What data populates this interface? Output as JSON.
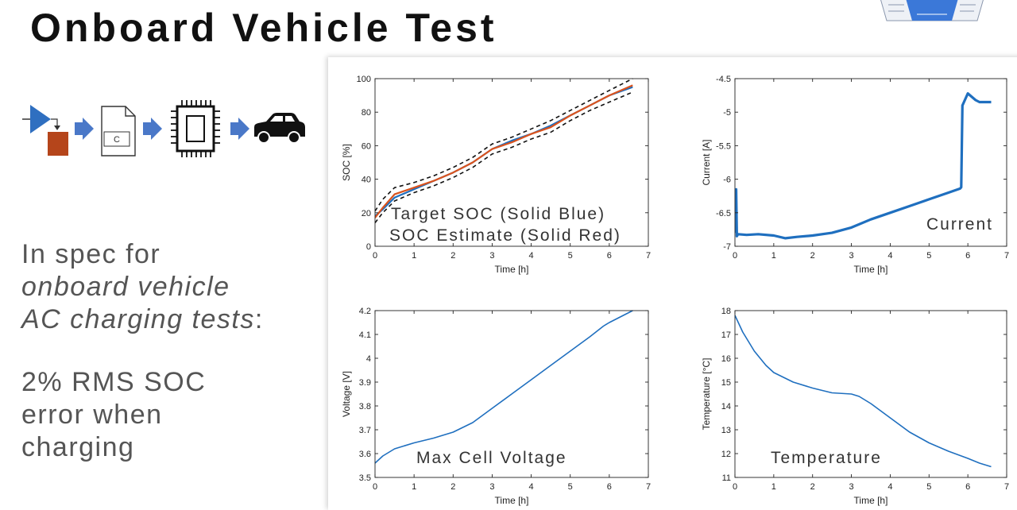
{
  "page": {
    "title": "Onboard Vehicle Test",
    "spec_line1": "In spec for",
    "spec_line2": "onboard vehicle",
    "spec_line3": "AC charging tests",
    "spec_colon": ":",
    "error_line1": "2% RMS SOC",
    "error_line2": "error when",
    "error_line3": "charging",
    "workflow_file_label": "C",
    "colors": {
      "series": "#1f6fbf",
      "estimate": "#d9531e",
      "bounds": "#111111",
      "arrow": "#4a78c8",
      "block": "#b5451b"
    },
    "icons": [
      "model-block-icon",
      "arrow-right-icon",
      "c-file-icon",
      "microchip-icon",
      "car-icon"
    ]
  },
  "chart_data": [
    {
      "type": "line",
      "xlabel": "Time [h]",
      "ylabel": "SOC [%]",
      "xlim": [
        0,
        7
      ],
      "ylim": [
        0,
        100
      ],
      "xticks": [
        "0",
        "1",
        "2",
        "3",
        "4",
        "5",
        "6",
        "7"
      ],
      "yticks": [
        "0",
        "20",
        "40",
        "60",
        "80",
        "100"
      ],
      "annotation_line1": "Target SOC (Solid Blue)",
      "annotation_line2": "SOC Estimate (Solid Red)",
      "grid": false,
      "series": [
        {
          "x": [
            0,
            0.2,
            0.5,
            1,
            1.5,
            2,
            2.5,
            3,
            3.5,
            4,
            4.5,
            5,
            5.5,
            6,
            6.6
          ],
          "y": [
            18,
            22,
            29,
            34,
            39,
            44,
            50,
            58,
            63,
            67,
            72,
            78,
            84,
            90,
            95
          ]
        },
        {
          "x": [
            0,
            0.2,
            0.5,
            1,
            1.5,
            2,
            2.5,
            3,
            3.5,
            4,
            4.5,
            5,
            5.5,
            6,
            6.6
          ],
          "y": [
            17,
            23,
            31,
            35,
            39,
            44,
            50,
            58,
            62,
            67,
            71,
            78,
            84,
            90,
            96
          ]
        },
        {
          "x": [
            0,
            0.2,
            0.5,
            1,
            1.5,
            2,
            2.5,
            3,
            3.5,
            4,
            4.5,
            5,
            5.5,
            6,
            6.6
          ],
          "y": [
            21,
            28,
            35,
            38,
            42,
            47,
            53,
            61,
            65,
            70,
            75,
            81,
            87,
            93,
            100
          ]
        },
        {
          "x": [
            0,
            0.2,
            0.5,
            1,
            1.5,
            2,
            2.5,
            3,
            3.5,
            4,
            4.5,
            5,
            5.5,
            6,
            6.6
          ],
          "y": [
            14,
            20,
            27,
            32,
            36,
            41,
            47,
            55,
            59,
            64,
            68,
            75,
            81,
            86,
            92
          ]
        }
      ]
    },
    {
      "type": "line",
      "xlabel": "Time [h]",
      "ylabel": "Current [A]",
      "xlim": [
        0,
        7
      ],
      "ylim": [
        -7,
        -4.5
      ],
      "xticks": [
        "0",
        "1",
        "2",
        "3",
        "4",
        "5",
        "6",
        "7"
      ],
      "yticks": [
        "-7",
        "-6.5",
        "-6",
        "-5.5",
        "-5",
        "-4.5"
      ],
      "annotation_line1": "Current",
      "grid": false,
      "series": [
        {
          "x": [
            0,
            0.03,
            0.05,
            0.08,
            0.3,
            0.6,
            1,
            1.3,
            1.6,
            2,
            2.5,
            3,
            3.5,
            4,
            4.5,
            5,
            5.5,
            5.8,
            5.83,
            5.86,
            6,
            6.2,
            6.3,
            6.6
          ],
          "y": [
            -6.8,
            -6.15,
            -6.85,
            -6.82,
            -6.83,
            -6.82,
            -6.84,
            -6.88,
            -6.86,
            -6.84,
            -6.8,
            -6.72,
            -6.6,
            -6.5,
            -6.4,
            -6.3,
            -6.2,
            -6.14,
            -6.12,
            -4.9,
            -4.72,
            -4.82,
            -4.85,
            -4.85
          ]
        }
      ]
    },
    {
      "type": "line",
      "xlabel": "Time [h]",
      "ylabel": "Voltage [V]",
      "xlim": [
        0,
        7
      ],
      "ylim": [
        3.5,
        4.2
      ],
      "xticks": [
        "0",
        "1",
        "2",
        "3",
        "4",
        "5",
        "6",
        "7"
      ],
      "yticks": [
        "3.5",
        "3.6",
        "3.7",
        "3.8",
        "3.9",
        "4",
        "4.1",
        "4.2"
      ],
      "annotation_line1": "Max Cell Voltage",
      "grid": false,
      "series": [
        {
          "x": [
            0,
            0.2,
            0.5,
            1,
            1.5,
            2,
            2.5,
            3,
            3.5,
            4,
            4.5,
            5,
            5.5,
            5.85,
            6,
            6.6
          ],
          "y": [
            3.56,
            3.59,
            3.62,
            3.645,
            3.665,
            3.69,
            3.73,
            3.79,
            3.85,
            3.91,
            3.97,
            4.03,
            4.09,
            4.135,
            4.15,
            4.2
          ]
        }
      ]
    },
    {
      "type": "line",
      "xlabel": "Time [h]",
      "ylabel": "Temperature [°C]",
      "xlim": [
        0,
        7
      ],
      "ylim": [
        11,
        18
      ],
      "xticks": [
        "0",
        "1",
        "2",
        "3",
        "4",
        "5",
        "6",
        "7"
      ],
      "yticks": [
        "11",
        "12",
        "13",
        "14",
        "15",
        "16",
        "17",
        "18"
      ],
      "annotation_line1": "Temperature",
      "grid": false,
      "series": [
        {
          "x": [
            0,
            0.2,
            0.5,
            0.8,
            1,
            1.5,
            2,
            2.5,
            3,
            3.2,
            3.5,
            4,
            4.5,
            5,
            5.5,
            6,
            6.3,
            6.6
          ],
          "y": [
            17.8,
            17.1,
            16.3,
            15.7,
            15.4,
            15.0,
            14.75,
            14.55,
            14.5,
            14.4,
            14.1,
            13.5,
            12.9,
            12.45,
            12.1,
            11.8,
            11.6,
            11.45
          ]
        }
      ]
    }
  ]
}
